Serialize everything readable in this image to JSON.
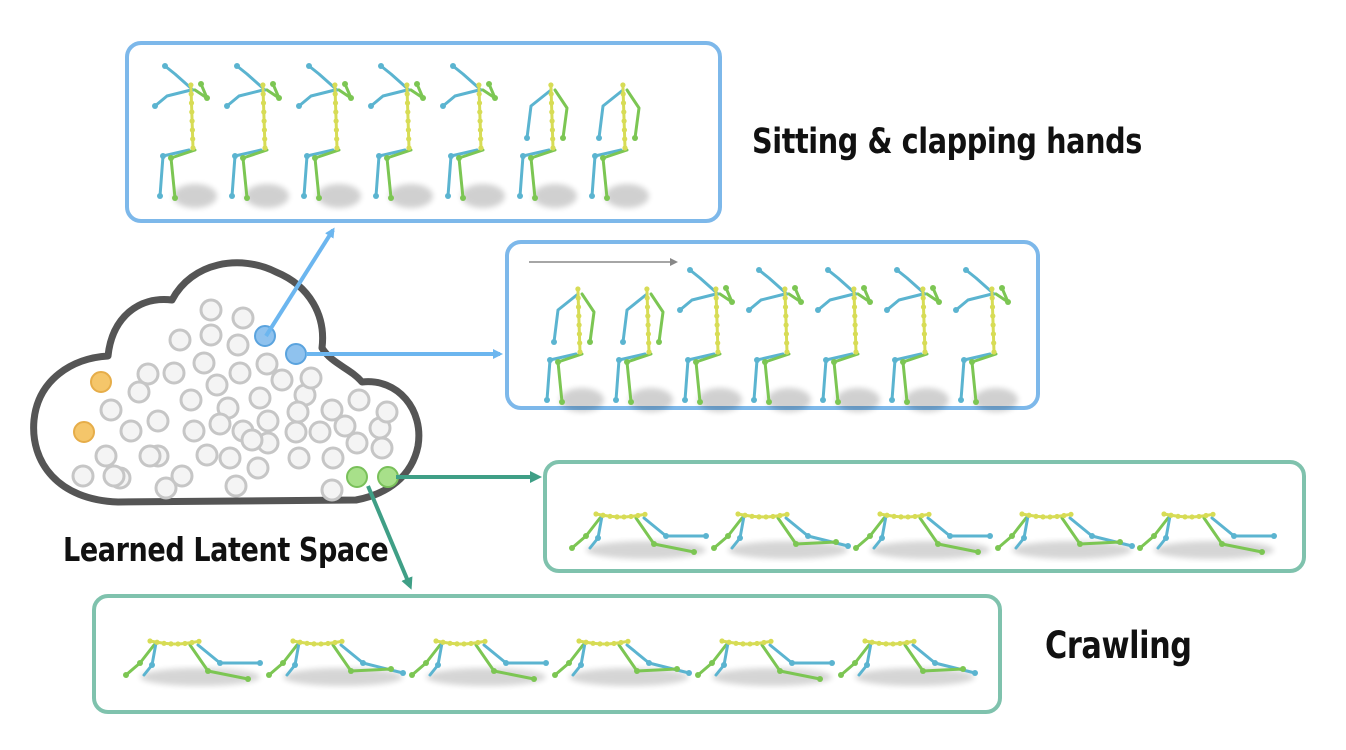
{
  "labels": {
    "sitting": "Sitting & clapping hands",
    "crawling": "Crawling",
    "latent": "Learned Latent Space"
  },
  "colors": {
    "blue_frame": "#7db8ea",
    "teal_frame": "#7fc2ad",
    "arrow_blue": "#6cb6ef",
    "arrow_teal": "#3f9f86",
    "cloud_outline": "#555555",
    "latent_dot": "#c6c6c6",
    "latent_dot_yellow": "#f5c66a",
    "latent_dot_blue": "#8fc2ee",
    "latent_dot_green": "#a8e08a",
    "skeleton_blue": "#5bb4d0",
    "skeleton_green": "#7cc653",
    "skeleton_yellow": "#d7dc55",
    "time_arrow": "#888888"
  },
  "latent_space": {
    "grey_dots": 52,
    "yellow_dots": 2,
    "blue_dots": 2,
    "green_dots": 2
  },
  "panels": [
    {
      "name": "sitting-panel-1",
      "pose": "sitting",
      "frames": 7
    },
    {
      "name": "sitting-panel-2",
      "pose": "sitting",
      "frames": 7
    },
    {
      "name": "crawling-panel-1",
      "pose": "crawling",
      "frames": 5
    },
    {
      "name": "crawling-panel-2",
      "pose": "crawling",
      "frames": 6
    }
  ]
}
